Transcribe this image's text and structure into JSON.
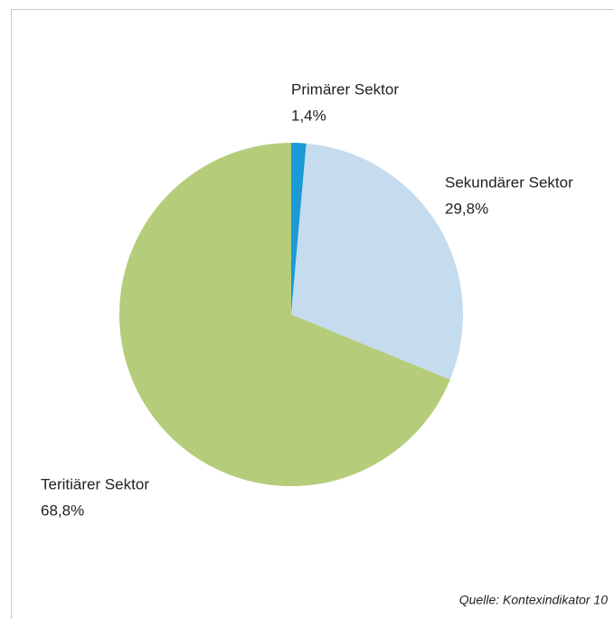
{
  "chart_data": {
    "type": "pie",
    "categories": [
      "Primärer Sektor",
      "Sekundärer Sektor",
      "Teritiärer Sektor"
    ],
    "values": [
      1.4,
      29.8,
      68.8
    ],
    "value_labels": [
      "1,4%",
      "29,8%",
      "68,8%"
    ],
    "colors": [
      "#1b9ad6",
      "#c5dcef",
      "#b5cc7a"
    ],
    "source": "Quelle: Kontexindikator 10"
  }
}
